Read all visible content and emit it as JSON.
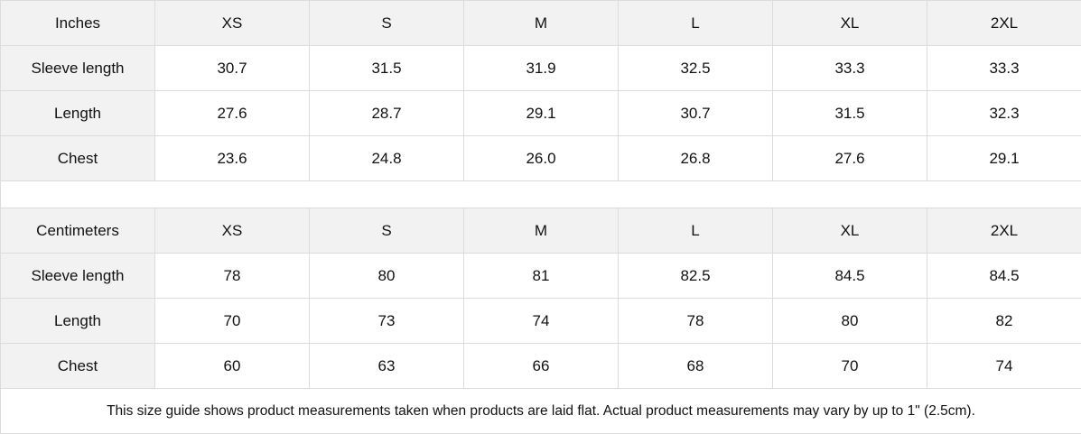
{
  "sizes": [
    "XS",
    "S",
    "M",
    "L",
    "XL",
    "2XL"
  ],
  "inches": {
    "unit_label": "Inches",
    "rows": [
      {
        "label": "Sleeve length",
        "values": [
          "30.7",
          "31.5",
          "31.9",
          "32.5",
          "33.3",
          "33.3"
        ]
      },
      {
        "label": "Length",
        "values": [
          "27.6",
          "28.7",
          "29.1",
          "30.7",
          "31.5",
          "32.3"
        ]
      },
      {
        "label": "Chest",
        "values": [
          "23.6",
          "24.8",
          "26.0",
          "26.8",
          "27.6",
          "29.1"
        ]
      }
    ]
  },
  "centimeters": {
    "unit_label": "Centimeters",
    "rows": [
      {
        "label": "Sleeve length",
        "values": [
          "78",
          "80",
          "81",
          "82.5",
          "84.5",
          "84.5"
        ]
      },
      {
        "label": "Length",
        "values": [
          "70",
          "73",
          "74",
          "78",
          "80",
          "82"
        ]
      },
      {
        "label": "Chest",
        "values": [
          "60",
          "63",
          "66",
          "68",
          "70",
          "74"
        ]
      }
    ]
  },
  "note": "This size guide shows product measurements taken when products are laid flat.  Actual product measurements may vary by up to 1\" (2.5cm).",
  "colors": {
    "header_bg": "#f2f2f2",
    "border": "#dcdcdc"
  }
}
